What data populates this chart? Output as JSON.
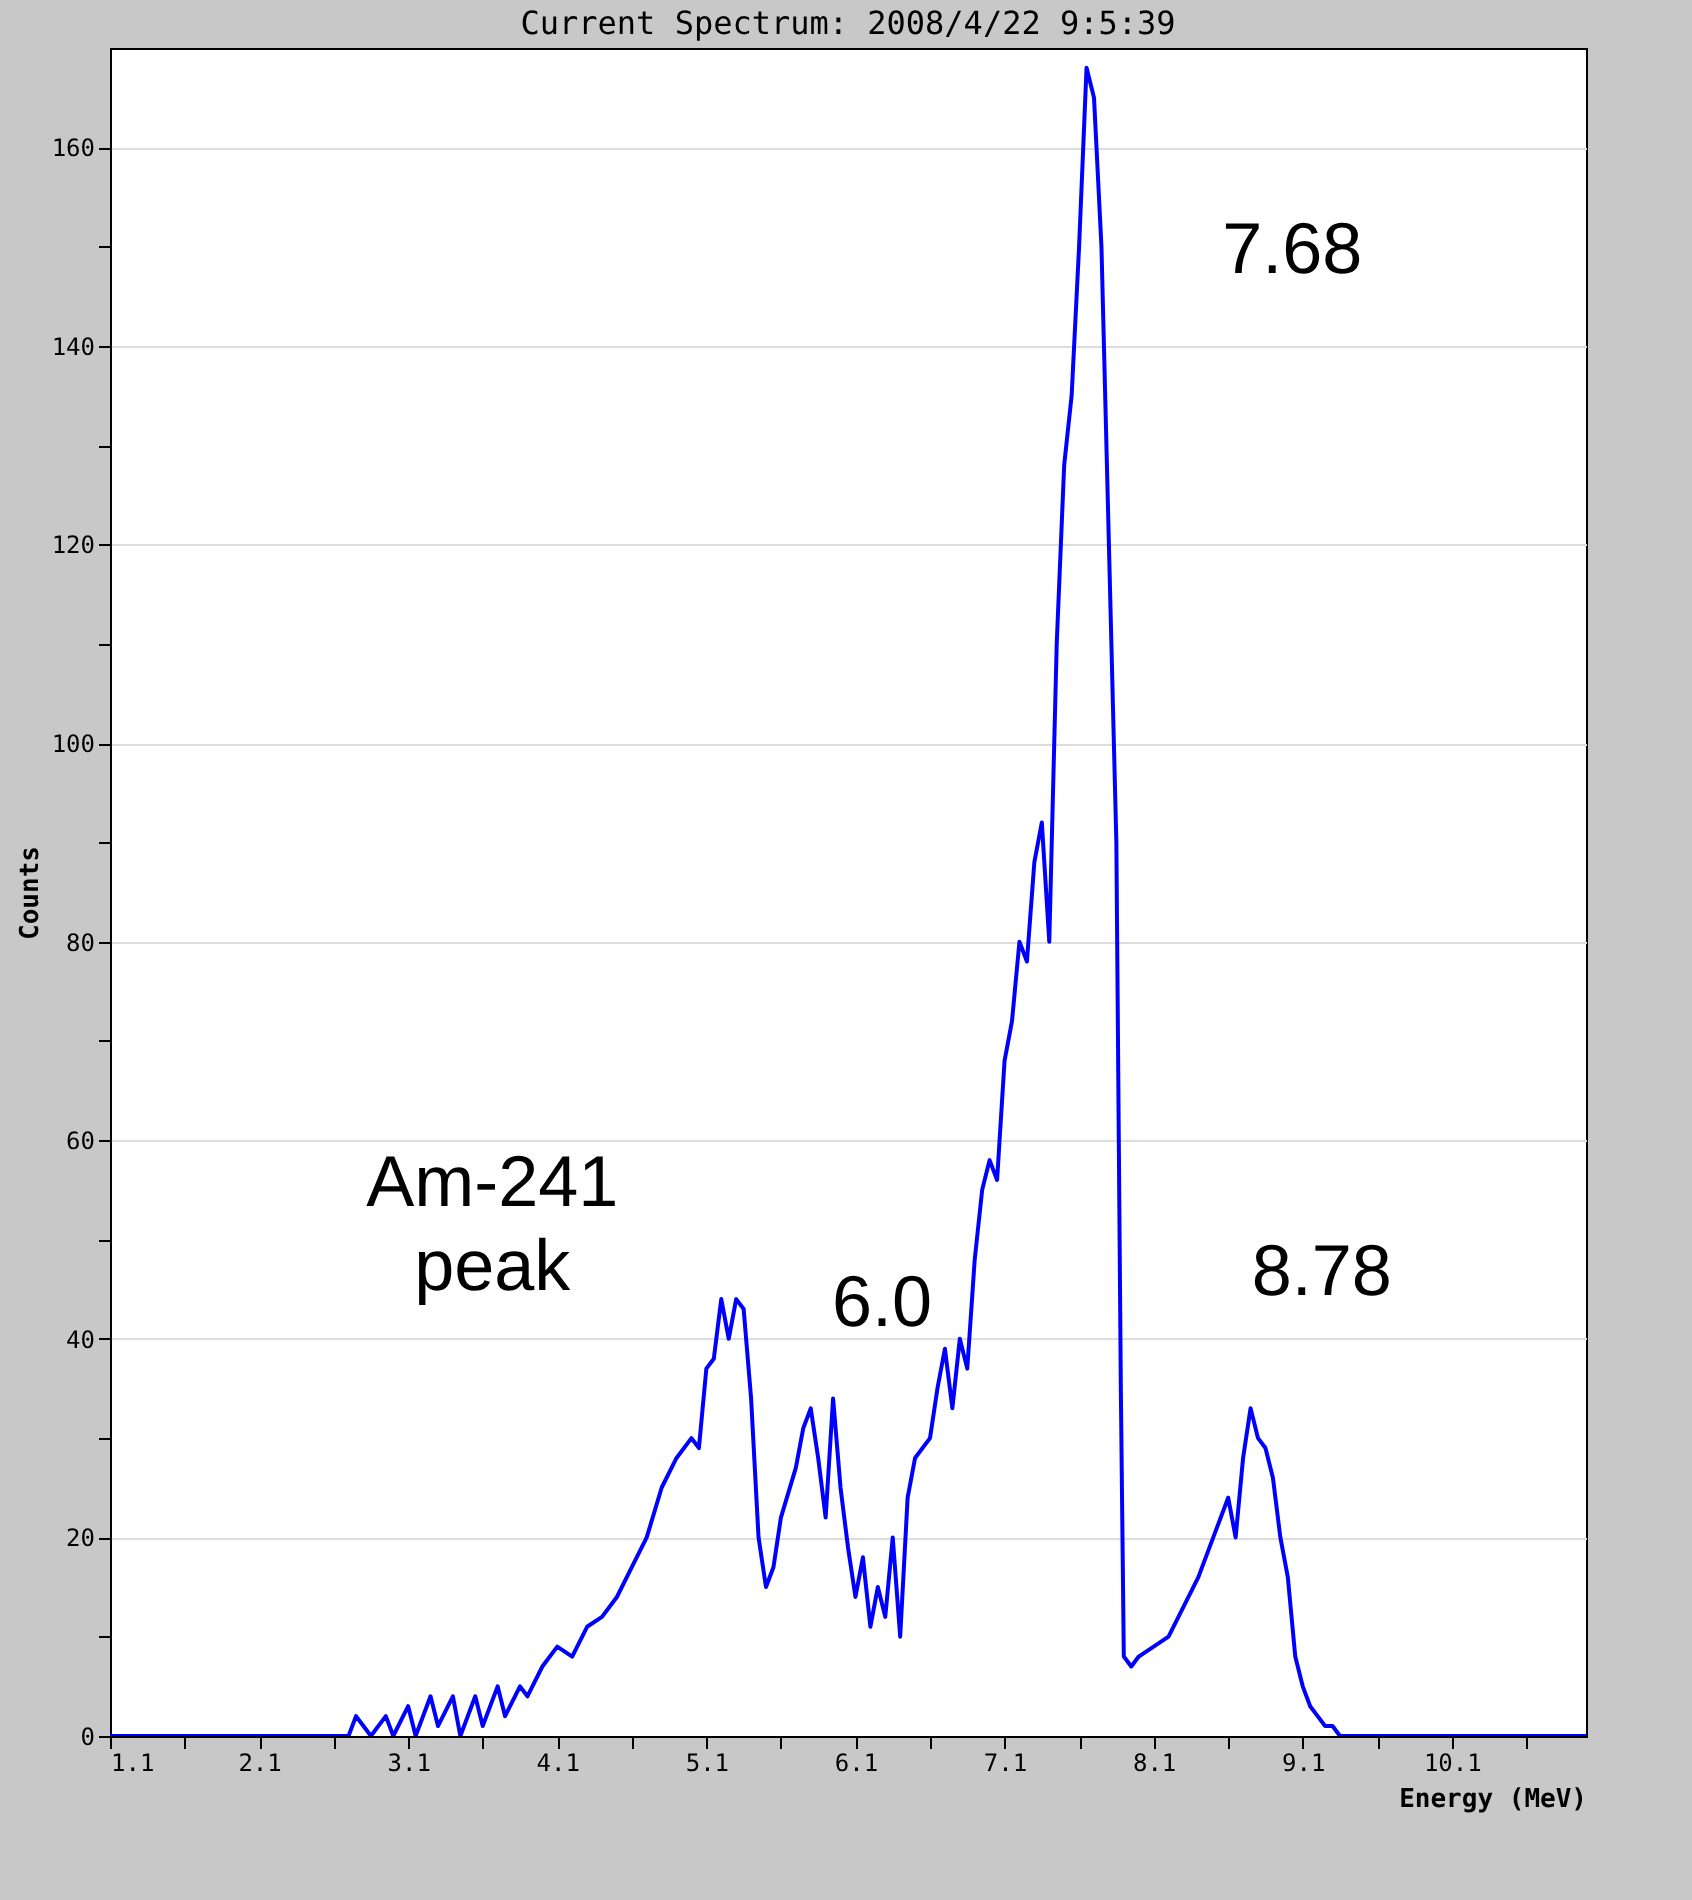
{
  "chart_data": {
    "type": "line",
    "title": "Current Spectrum: 2008/4/22 9:5:39",
    "xlabel": "Energy (MeV)",
    "ylabel": "Counts",
    "xlim": [
      1.1,
      11.0
    ],
    "xticks": [
      1.1,
      {
        "value": 1.6,
        "label": null
      },
      2.1,
      {
        "value": 2.6,
        "label": null
      },
      3.1,
      {
        "value": 3.6,
        "label": null
      },
      4.1,
      {
        "value": 4.6,
        "label": null
      },
      5.1,
      {
        "value": 5.6,
        "label": null
      },
      6.1,
      {
        "value": 6.6,
        "label": null
      },
      7.1,
      {
        "value": 7.6,
        "label": null
      },
      8.1,
      {
        "value": 8.6,
        "label": null
      },
      9.1,
      {
        "value": 9.6,
        "label": null
      },
      10.1,
      {
        "value": 10.6,
        "label": null
      }
    ],
    "ylim": [
      0,
      170
    ],
    "yticks": [
      0,
      {
        "value": 10,
        "label": null
      },
      20,
      {
        "value": 30,
        "label": null
      },
      40,
      {
        "value": 50,
        "label": null
      },
      60,
      {
        "value": 70,
        "label": null
      },
      80,
      {
        "value": 90,
        "label": null
      },
      100,
      {
        "value": 110,
        "label": null
      },
      120,
      {
        "value": 130,
        "label": null
      },
      140,
      {
        "value": 150,
        "label": null
      },
      160
    ],
    "grid": "y",
    "legend": false,
    "marker": "none",
    "line_style": "solid",
    "series": [
      {
        "color": "#0000ff",
        "x": [
          1.1,
          2.7,
          2.75,
          2.8,
          2.85,
          2.95,
          3.0,
          3.1,
          3.15,
          3.25,
          3.3,
          3.4,
          3.45,
          3.55,
          3.6,
          3.7,
          3.75,
          3.85,
          3.9,
          4.0,
          4.1,
          4.2,
          4.3,
          4.4,
          4.5,
          4.6,
          4.7,
          4.8,
          4.9,
          5.0,
          5.05,
          5.1,
          5.15,
          5.2,
          5.25,
          5.3,
          5.35,
          5.4,
          5.45,
          5.5,
          5.55,
          5.6,
          5.7,
          5.75,
          5.8,
          5.85,
          5.9,
          5.95,
          6.0,
          6.05,
          6.1,
          6.15,
          6.2,
          6.25,
          6.3,
          6.35,
          6.4,
          6.45,
          6.5,
          6.6,
          6.65,
          6.7,
          6.75,
          6.8,
          6.85,
          6.9,
          6.95,
          7.0,
          7.05,
          7.1,
          7.15,
          7.2,
          7.25,
          7.3,
          7.35,
          7.4,
          7.45,
          7.5,
          7.55,
          7.6,
          7.65,
          7.7,
          7.75,
          7.8,
          7.85,
          7.88,
          7.9,
          7.95,
          8.0,
          8.1,
          8.2,
          8.3,
          8.4,
          8.5,
          8.6,
          8.65,
          8.7,
          8.75,
          8.8,
          8.85,
          8.9,
          8.95,
          9.0,
          9.05,
          9.1,
          9.15,
          9.2,
          9.25,
          9.3,
          9.35,
          9.4,
          9.45,
          11.0
        ],
        "values": [
          0,
          0,
          2,
          1,
          0,
          2,
          0,
          3,
          0,
          4,
          1,
          4,
          0,
          4,
          1,
          5,
          2,
          5,
          4,
          7,
          9,
          8,
          11,
          12,
          14,
          17,
          20,
          25,
          28,
          30,
          29,
          37,
          38,
          44,
          40,
          44,
          43,
          34,
          20,
          15,
          17,
          22,
          27,
          31,
          33,
          28,
          22,
          34,
          25,
          19,
          14,
          18,
          11,
          15,
          12,
          20,
          10,
          24,
          28,
          30,
          35,
          39,
          33,
          40,
          37,
          48,
          55,
          58,
          56,
          68,
          72,
          80,
          78,
          88,
          92,
          80,
          110,
          128,
          135,
          150,
          168,
          165,
          150,
          120,
          90,
          35,
          8,
          7,
          8,
          9,
          10,
          13,
          16,
          20,
          24,
          20,
          28,
          33,
          30,
          29,
          26,
          20,
          16,
          8,
          5,
          3,
          2,
          1,
          1,
          0,
          0,
          0,
          0
        ]
      }
    ],
    "annotations": [
      "Am-241 peak",
      "6.0",
      "7.68",
      "8.78"
    ]
  }
}
